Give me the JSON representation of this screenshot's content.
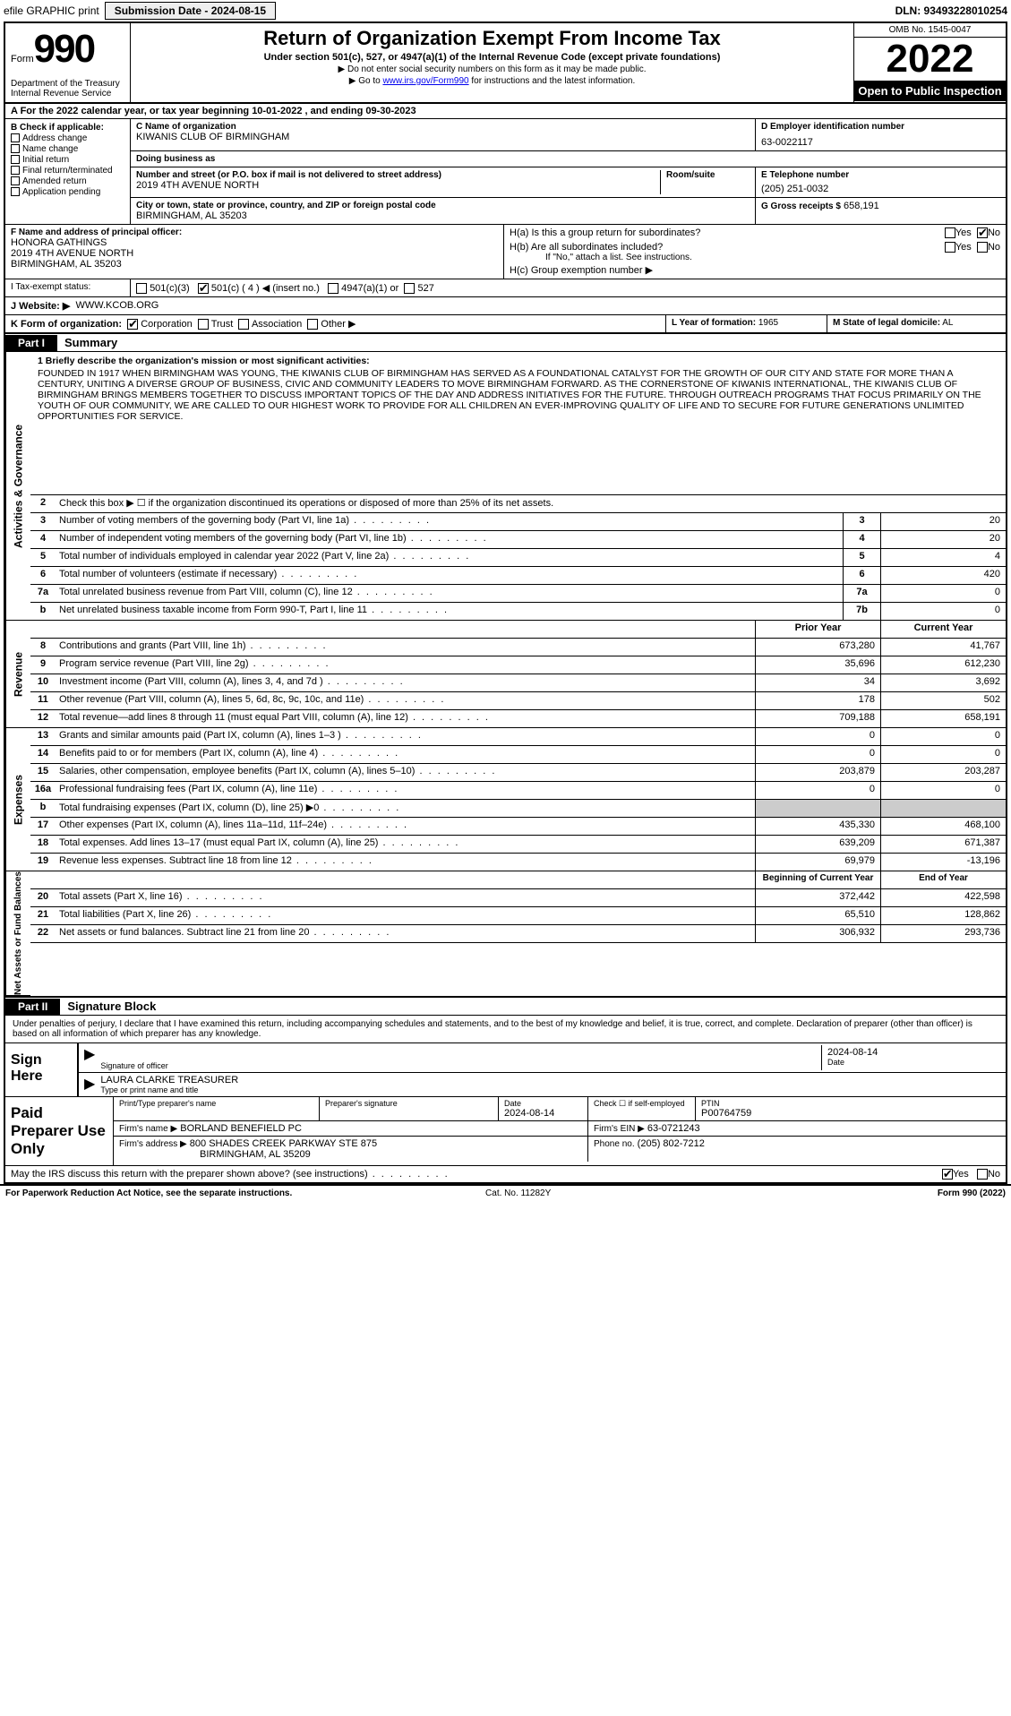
{
  "top": {
    "efile": "efile GRAPHIC print",
    "sub_label": "Submission Date - 2024-08-15",
    "dln": "DLN: 93493228010254"
  },
  "header": {
    "form_word": "Form",
    "form_num": "990",
    "dept": "Department of the Treasury\nInternal Revenue Service",
    "title": "Return of Organization Exempt From Income Tax",
    "sub1": "Under section 501(c), 527, or 4947(a)(1) of the Internal Revenue Code (except private foundations)",
    "sub2": "▶ Do not enter social security numbers on this form as it may be made public.",
    "sub3_pre": "▶ Go to ",
    "sub3_link": "www.irs.gov/Form990",
    "sub3_post": " for instructions and the latest information.",
    "omb": "OMB No. 1545-0047",
    "year": "2022",
    "open": "Open to Public Inspection"
  },
  "lineA": "A For the 2022 calendar year, or tax year beginning 10-01-2022   , and ending 09-30-2023",
  "colB": {
    "label": "B Check if applicable:",
    "items": [
      "Address change",
      "Name change",
      "Initial return",
      "Final return/terminated",
      "Amended return",
      "Application pending"
    ]
  },
  "C": {
    "name_lbl": "C Name of organization",
    "name": "KIWANIS CLUB OF BIRMINGHAM",
    "dba_lbl": "Doing business as",
    "dba": "",
    "addr_lbl": "Number and street (or P.O. box if mail is not delivered to street address)",
    "addr": "2019 4TH AVENUE NORTH",
    "room_lbl": "Room/suite",
    "city_lbl": "City or town, state or province, country, and ZIP or foreign postal code",
    "city": "BIRMINGHAM, AL  35203"
  },
  "D": {
    "lbl": "D Employer identification number",
    "val": "63-0022117"
  },
  "E": {
    "lbl": "E Telephone number",
    "val": "(205) 251-0032"
  },
  "G": {
    "lbl": "G Gross receipts $",
    "val": "658,191"
  },
  "F": {
    "lbl": "F  Name and address of principal officer:",
    "name": "HONORA GATHINGS",
    "addr1": "2019 4TH AVENUE NORTH",
    "addr2": "BIRMINGHAM, AL  35203"
  },
  "H": {
    "a": "H(a)  Is this a group return for subordinates?",
    "b": "H(b)  Are all subordinates included?",
    "bnote": "If \"No,\" attach a list. See instructions.",
    "c": "H(c)  Group exemption number ▶"
  },
  "I": {
    "lbl": "I   Tax-exempt status:",
    "c3": "501(c)(3)",
    "c4": "501(c) ( 4 ) ◀ (insert no.)",
    "a1": "4947(a)(1) or",
    "s527": "527"
  },
  "J": {
    "lbl": "J   Website: ▶",
    "val": "WWW.KCOB.ORG"
  },
  "K": {
    "lbl": "K Form of organization:",
    "opts": [
      "Corporation",
      "Trust",
      "Association",
      "Other ▶"
    ]
  },
  "L": {
    "lbl": "L Year of formation:",
    "val": "1965"
  },
  "M": {
    "lbl": "M State of legal domicile:",
    "val": "AL"
  },
  "part1": {
    "hdr": "Part I",
    "title": "Summary"
  },
  "mission": {
    "lbl": "1   Briefly describe the organization's mission or most significant activities:",
    "text": "FOUNDED IN 1917 WHEN BIRMINGHAM WAS YOUNG, THE KIWANIS CLUB OF BIRMINGHAM HAS SERVED AS A FOUNDATIONAL CATALYST FOR THE GROWTH OF OUR CITY AND STATE FOR MORE THAN A CENTURY, UNITING A DIVERSE GROUP OF BUSINESS, CIVIC AND COMMUNITY LEADERS TO MOVE BIRMINGHAM FORWARD. AS THE CORNERSTONE OF KIWANIS INTERNATIONAL, THE KIWANIS CLUB OF BIRMINGHAM BRINGS MEMBERS TOGETHER TO DISCUSS IMPORTANT TOPICS OF THE DAY AND ADDRESS INITIATIVES FOR THE FUTURE. THROUGH OUTREACH PROGRAMS THAT FOCUS PRIMARILY ON THE YOUTH OF OUR COMMUNITY, WE ARE CALLED TO OUR HIGHEST WORK TO PROVIDE FOR ALL CHILDREN AN EVER-IMPROVING QUALITY OF LIFE AND TO SECURE FOR FUTURE GENERATIONS UNLIMITED OPPORTUNITIES FOR SERVICE."
  },
  "line2": "Check this box ▶ ☐ if the organization discontinued its operations or disposed of more than 25% of its net assets.",
  "gov_rows": [
    {
      "n": "3",
      "t": "Number of voting members of the governing body (Part VI, line 1a)",
      "box": "3",
      "v": "20"
    },
    {
      "n": "4",
      "t": "Number of independent voting members of the governing body (Part VI, line 1b)",
      "box": "4",
      "v": "20"
    },
    {
      "n": "5",
      "t": "Total number of individuals employed in calendar year 2022 (Part V, line 2a)",
      "box": "5",
      "v": "4"
    },
    {
      "n": "6",
      "t": "Total number of volunteers (estimate if necessary)",
      "box": "6",
      "v": "420"
    },
    {
      "n": "7a",
      "t": "Total unrelated business revenue from Part VIII, column (C), line 12",
      "box": "7a",
      "v": "0"
    },
    {
      "n": "b",
      "t": "Net unrelated business taxable income from Form 990-T, Part I, line 11",
      "box": "7b",
      "v": "0"
    }
  ],
  "rev_hdr": {
    "py": "Prior Year",
    "cy": "Current Year"
  },
  "rev_rows": [
    {
      "n": "8",
      "t": "Contributions and grants (Part VIII, line 1h)",
      "py": "673,280",
      "cy": "41,767"
    },
    {
      "n": "9",
      "t": "Program service revenue (Part VIII, line 2g)",
      "py": "35,696",
      "cy": "612,230"
    },
    {
      "n": "10",
      "t": "Investment income (Part VIII, column (A), lines 3, 4, and 7d )",
      "py": "34",
      "cy": "3,692"
    },
    {
      "n": "11",
      "t": "Other revenue (Part VIII, column (A), lines 5, 6d, 8c, 9c, 10c, and 11e)",
      "py": "178",
      "cy": "502"
    },
    {
      "n": "12",
      "t": "Total revenue—add lines 8 through 11 (must equal Part VIII, column (A), line 12)",
      "py": "709,188",
      "cy": "658,191"
    }
  ],
  "exp_rows": [
    {
      "n": "13",
      "t": "Grants and similar amounts paid (Part IX, column (A), lines 1–3 )",
      "py": "0",
      "cy": "0"
    },
    {
      "n": "14",
      "t": "Benefits paid to or for members (Part IX, column (A), line 4)",
      "py": "0",
      "cy": "0"
    },
    {
      "n": "15",
      "t": "Salaries, other compensation, employee benefits (Part IX, column (A), lines 5–10)",
      "py": "203,879",
      "cy": "203,287"
    },
    {
      "n": "16a",
      "t": "Professional fundraising fees (Part IX, column (A), line 11e)",
      "py": "0",
      "cy": "0"
    },
    {
      "n": "b",
      "t": "Total fundraising expenses (Part IX, column (D), line 25) ▶0",
      "py": "",
      "cy": "",
      "shade": true
    },
    {
      "n": "17",
      "t": "Other expenses (Part IX, column (A), lines 11a–11d, 11f–24e)",
      "py": "435,330",
      "cy": "468,100"
    },
    {
      "n": "18",
      "t": "Total expenses. Add lines 13–17 (must equal Part IX, column (A), line 25)",
      "py": "639,209",
      "cy": "671,387"
    },
    {
      "n": "19",
      "t": "Revenue less expenses. Subtract line 18 from line 12",
      "py": "69,979",
      "cy": "-13,196"
    }
  ],
  "na_hdr": {
    "py": "Beginning of Current Year",
    "cy": "End of Year"
  },
  "na_rows": [
    {
      "n": "20",
      "t": "Total assets (Part X, line 16)",
      "py": "372,442",
      "cy": "422,598"
    },
    {
      "n": "21",
      "t": "Total liabilities (Part X, line 26)",
      "py": "65,510",
      "cy": "128,862"
    },
    {
      "n": "22",
      "t": "Net assets or fund balances. Subtract line 21 from line 20",
      "py": "306,932",
      "cy": "293,736"
    }
  ],
  "part2": {
    "hdr": "Part II",
    "title": "Signature Block"
  },
  "sig": {
    "decl": "Under penalties of perjury, I declare that I have examined this return, including accompanying schedules and statements, and to the best of my knowledge and belief, it is true, correct, and complete. Declaration of preparer (other than officer) is based on all information of which preparer has any knowledge.",
    "sign_here": "Sign Here",
    "sig_of": "Signature of officer",
    "date": "2024-08-14",
    "date_lbl": "Date",
    "name": "LAURA CLARKE  TREASURER",
    "name_lbl": "Type or print name and title"
  },
  "prep": {
    "label": "Paid Preparer Use Only",
    "h1": "Print/Type preparer's name",
    "h2": "Preparer's signature",
    "h3": "Date",
    "h3v": "2024-08-14",
    "h4": "Check ☐ if self-employed",
    "h5": "PTIN",
    "h5v": "P00764759",
    "firm_lbl": "Firm's name    ▶",
    "firm": "BORLAND BENEFIELD PC",
    "ein_lbl": "Firm's EIN ▶",
    "ein": "63-0721243",
    "addr_lbl": "Firm's address ▶",
    "addr1": "800 SHADES CREEK PARKWAY STE 875",
    "addr2": "BIRMINGHAM, AL  35209",
    "phone_lbl": "Phone no.",
    "phone": "(205) 802-7212"
  },
  "discuss": "May the IRS discuss this return with the preparer shown above? (see instructions)",
  "footer": {
    "l": "For Paperwork Reduction Act Notice, see the separate instructions.",
    "m": "Cat. No. 11282Y",
    "r": "Form 990 (2022)"
  },
  "side_labels": {
    "gov": "Activities & Governance",
    "rev": "Revenue",
    "exp": "Expenses",
    "na": "Net Assets or Fund Balances"
  },
  "colors": {
    "link": "#0000ee",
    "shade": "#cccccc",
    "black": "#000000"
  }
}
